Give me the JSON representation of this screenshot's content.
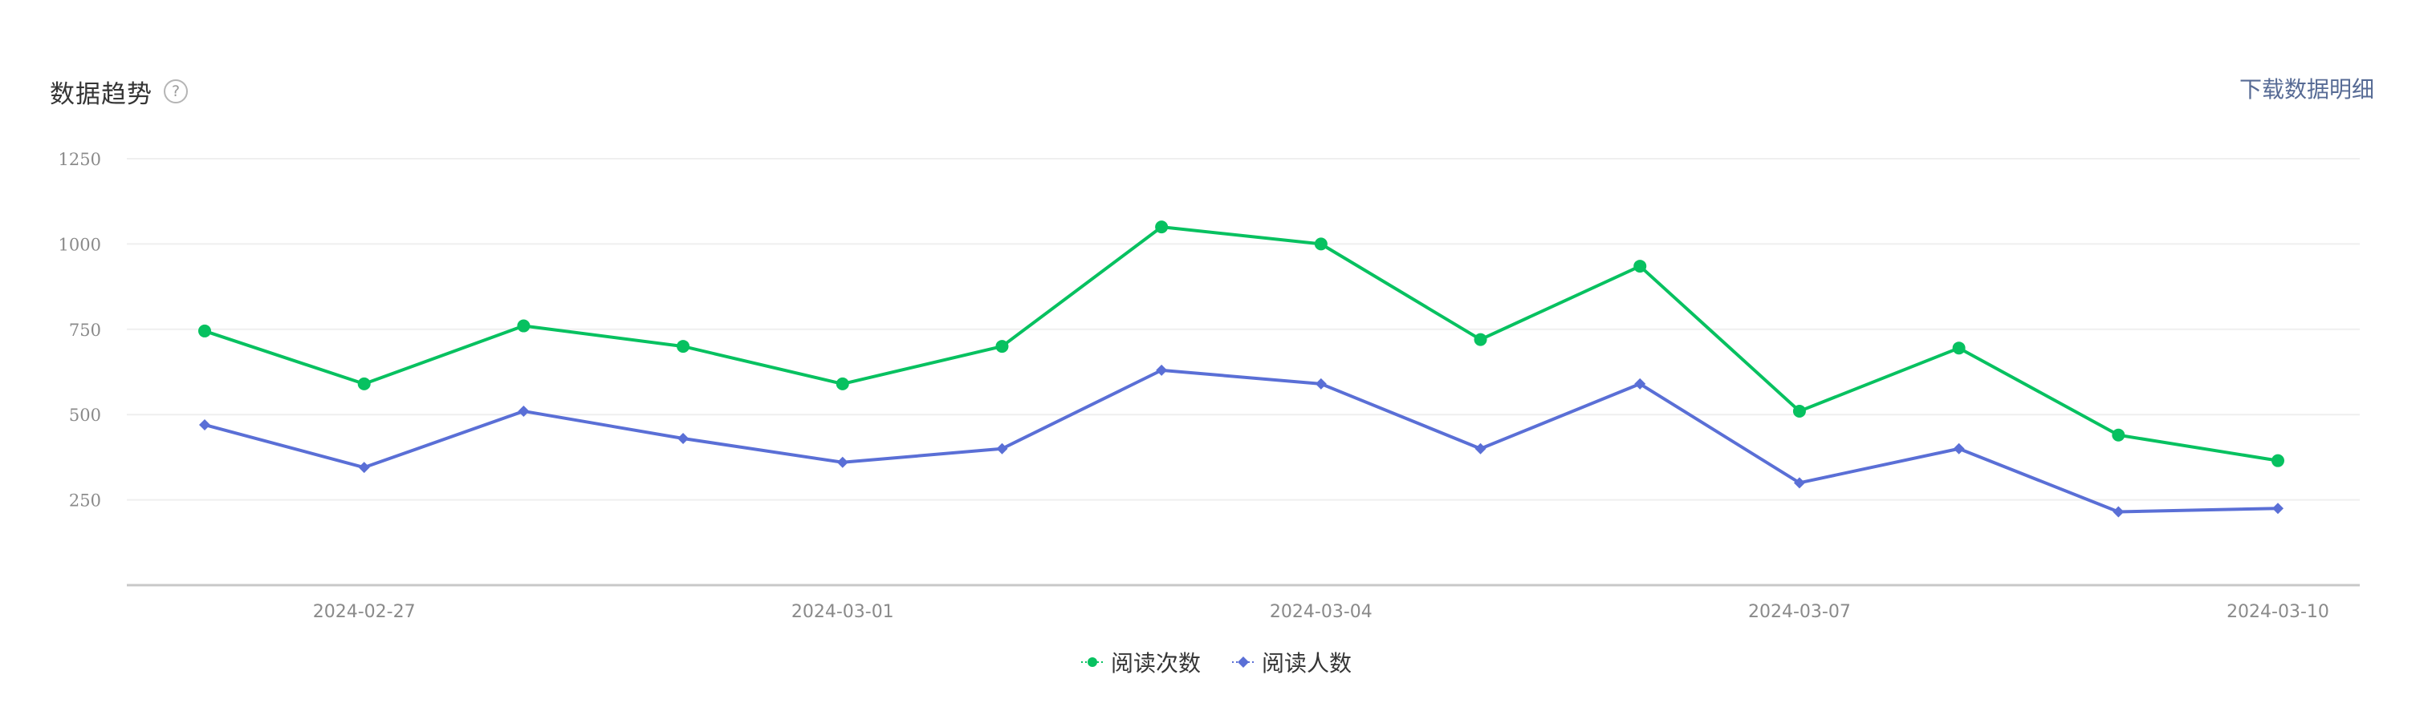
{
  "header": {
    "title": "数据趋势",
    "help_icon_glyph": "?",
    "download_label": "下载数据明细"
  },
  "colors": {
    "series_1": "#07c160",
    "series_2": "#5a6fd6",
    "grid": "#efefef",
    "axis": "#c8c8c8",
    "tick_text": "#8a8a8a",
    "link": "#576b95"
  },
  "chart_data": {
    "type": "line",
    "x": [
      "2024-02-26",
      "2024-02-27",
      "2024-02-28",
      "2024-02-29",
      "2024-03-01",
      "2024-03-02",
      "2024-03-03",
      "2024-03-04",
      "2024-03-05",
      "2024-03-06",
      "2024-03-07",
      "2024-03-08",
      "2024-03-09",
      "2024-03-10"
    ],
    "x_tick_labels": [
      "2024-02-27",
      "2024-03-01",
      "2024-03-04",
      "2024-03-07",
      "2024-03-10"
    ],
    "y_ticks": [
      250,
      500,
      750,
      1000,
      1250
    ],
    "ylim": [
      0,
      1250
    ],
    "grid": true,
    "legend_position": "bottom-center",
    "series": [
      {
        "name": "阅读次数",
        "marker": "circle",
        "values": [
          745,
          590,
          760,
          700,
          590,
          700,
          1050,
          1000,
          720,
          935,
          510,
          695,
          440,
          365
        ]
      },
      {
        "name": "阅读人数",
        "marker": "diamond",
        "values": [
          470,
          345,
          510,
          430,
          360,
          400,
          630,
          590,
          400,
          590,
          300,
          400,
          215,
          225
        ]
      }
    ]
  }
}
